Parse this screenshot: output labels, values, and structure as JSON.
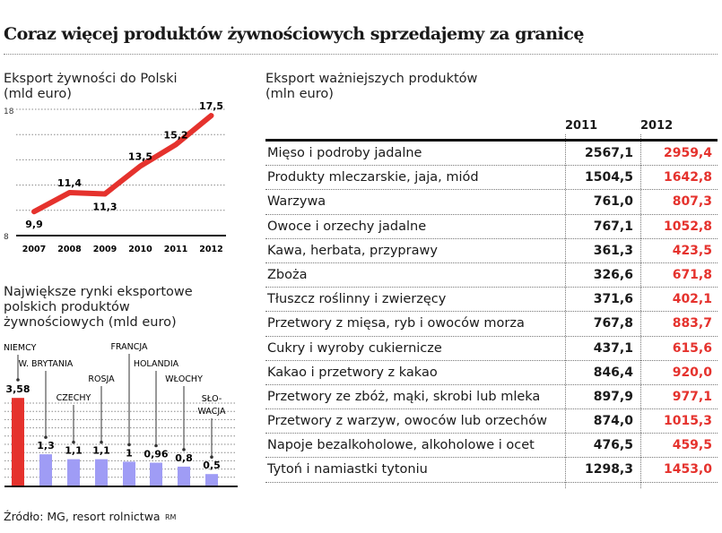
{
  "title": "Coraz więcej produktów żywnościowych sprzedajemy za granicę",
  "colors": {
    "accent_red": "#e5322d",
    "bar_blue": "#9f9cf5",
    "text": "#1a1a1a"
  },
  "chart_data": [
    {
      "type": "line",
      "title_line1": "Eksport żywności do Polski",
      "title_line2": "(mld euro)",
      "categories": [
        "2007",
        "2008",
        "2009",
        "2010",
        "2011",
        "2012"
      ],
      "values": [
        9.9,
        11.4,
        11.3,
        13.5,
        15.2,
        17.5
      ],
      "value_labels": [
        "9,9",
        "11,4",
        "11,3",
        "13,5",
        "15,2",
        "17,5"
      ],
      "ylim": [
        8,
        18
      ],
      "ytick_labels": [
        "8",
        "18"
      ],
      "grid": true,
      "color": "#e5322d"
    },
    {
      "type": "bar",
      "title_line1": "Największe rynki eksportowe",
      "title_line2": "polskich produktów",
      "title_line3": "żywnościowych (mld euro)",
      "categories": [
        "NIEMCY",
        "W. BRYTANIA",
        "CZECHY",
        "ROSJA",
        "FRANCJA",
        "HOLANDIA",
        "WŁOCHY",
        "SŁO-|WACJA"
      ],
      "values": [
        3.58,
        1.3,
        1.1,
        1.1,
        1,
        0.96,
        0.8,
        0.5
      ],
      "value_labels": [
        "3,58",
        "1,3",
        "1,1",
        "1,1",
        "1",
        "0,96",
        "0,8",
        "0,5"
      ],
      "colors": [
        "#e5322d",
        "#9f9cf5",
        "#9f9cf5",
        "#9f9cf5",
        "#9f9cf5",
        "#9f9cf5",
        "#9f9cf5",
        "#9f9cf5"
      ],
      "grid": true
    },
    {
      "type": "table",
      "title_line1": "Eksport ważniejszych produktów",
      "title_line2": "(mln euro)",
      "columns": [
        "2011",
        "2012"
      ],
      "rows": [
        {
          "label": "Mięso i podroby jadalne",
          "v2011": "2567,1",
          "v2012": "2959,4"
        },
        {
          "label": "Produkty mleczarskie, jaja, miód",
          "v2011": "1504,5",
          "v2012": "1642,8"
        },
        {
          "label": "Warzywa",
          "v2011": "761,0",
          "v2012": "807,3"
        },
        {
          "label": "Owoce i orzechy jadalne",
          "v2011": "767,1",
          "v2012": "1052,8"
        },
        {
          "label": "Kawa, herbata, przyprawy",
          "v2011": "361,3",
          "v2012": "423,5"
        },
        {
          "label": "Zboża",
          "v2011": "326,6",
          "v2012": "671,8"
        },
        {
          "label": "Tłuszcz roślinny i zwierzęcy",
          "v2011": "371,6",
          "v2012": "402,1"
        },
        {
          "label": "Przetwory z mięsa, ryb i owoców morza",
          "v2011": "767,8",
          "v2012": "883,7"
        },
        {
          "label": "Cukry i wyroby cukiernicze",
          "v2011": "437,1",
          "v2012": "615,6"
        },
        {
          "label": "Kakao i przetwory z kakao",
          "v2011": "846,4",
          "v2012": "920,0"
        },
        {
          "label": "Przetwory ze zbóż, mąki, skrobi lub mleka",
          "v2011": "897,9",
          "v2012": "977,1"
        },
        {
          "label": "Przetwory z warzyw, owoców lub orzechów",
          "v2011": "874,0",
          "v2012": "1015,3"
        },
        {
          "label": "Napoje bezalkoholowe, alkoholowe i ocet",
          "v2011": "476,5",
          "v2012": "459,5"
        },
        {
          "label": "Tytoń i namiastki tytoniu",
          "v2011": "1298,3",
          "v2012": "1453,0"
        }
      ]
    }
  ],
  "footer": {
    "source": "Źródło: MG, resort rolnictwa",
    "author": "RM"
  }
}
